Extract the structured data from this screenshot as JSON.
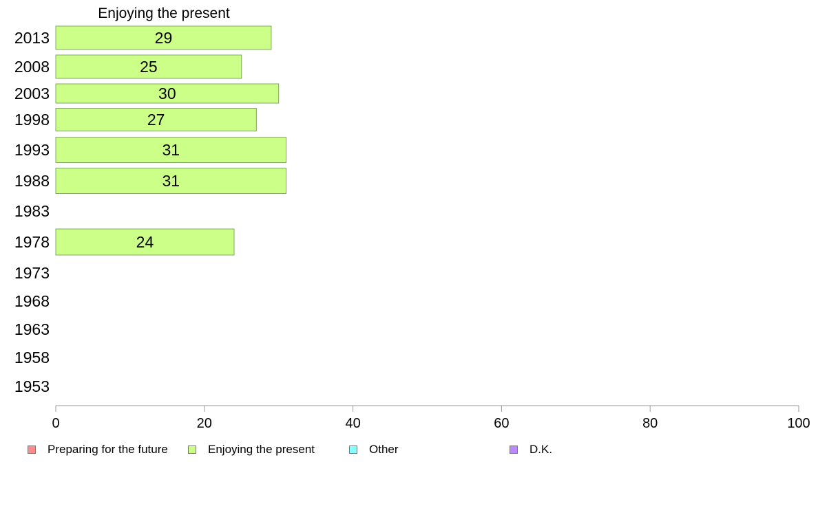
{
  "chart_data": {
    "type": "bar",
    "orientation": "horizontal",
    "title": "Enjoying the present",
    "categories": [
      "2013",
      "2008",
      "2003",
      "1998",
      "1993",
      "1988",
      "1983",
      "1978",
      "1973",
      "1968",
      "1963",
      "1958",
      "1953"
    ],
    "series": [
      {
        "name": "Enjoying the present",
        "color": "#ccff88",
        "values": [
          29,
          25,
          30,
          27,
          31,
          31,
          null,
          24,
          null,
          null,
          null,
          null,
          null
        ]
      }
    ],
    "data_labels": [
      "29",
      "25",
      "30",
      "27",
      "31",
      "31",
      "",
      "24",
      "",
      "",
      "",
      "",
      ""
    ],
    "xlim": [
      0,
      100
    ],
    "xticks": [
      "0",
      "20",
      "40",
      "60",
      "80",
      "100"
    ],
    "grid": false,
    "legend_position": "bottom"
  },
  "legend": {
    "items": [
      {
        "label": "Preparing for the future",
        "color": "#ff8c8c"
      },
      {
        "label": "Enjoying the present",
        "color": "#ccff88"
      },
      {
        "label": "Other",
        "color": "#88ffff"
      },
      {
        "label": "D.K.",
        "color": "#bb88ff"
      }
    ]
  }
}
